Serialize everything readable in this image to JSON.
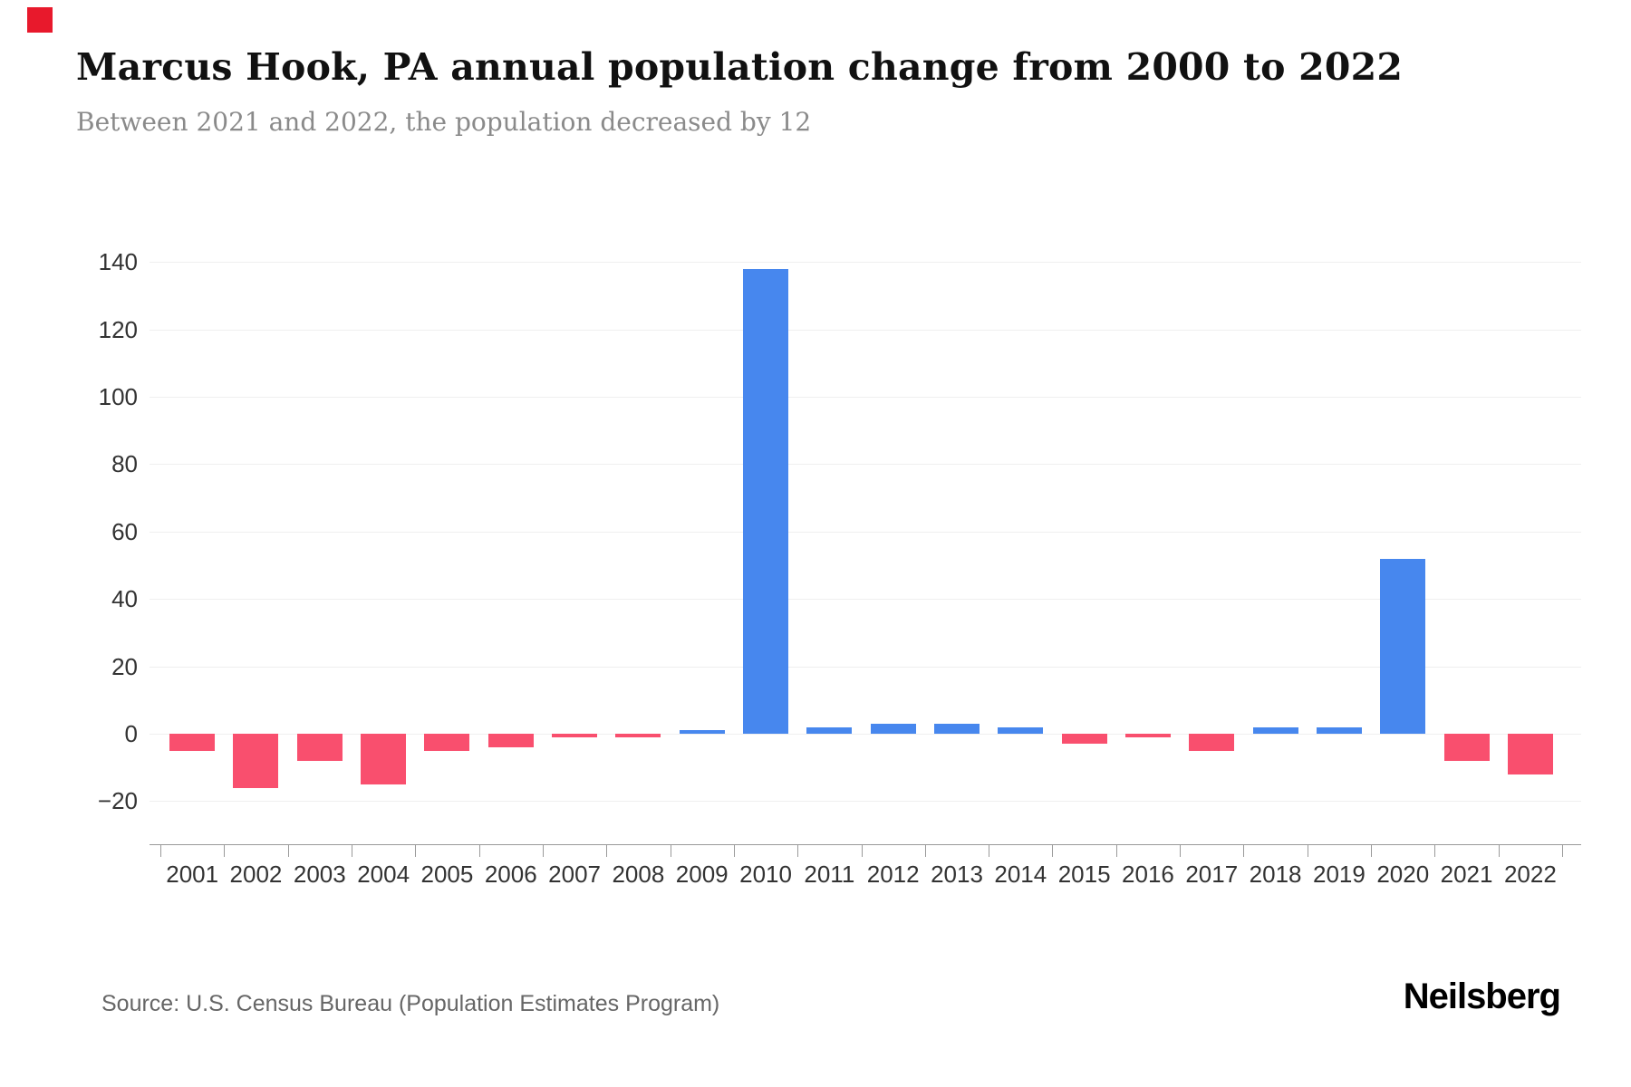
{
  "branding": {
    "logo_text": "Neilsberg",
    "accent_square_color": "#e8192c"
  },
  "header": {
    "title": "Marcus Hook, PA annual population change from 2000 to 2022",
    "subtitle": "Between 2021 and 2022, the population decreased by 12"
  },
  "source": {
    "text": "Source: U.S. Census Bureau (Population Estimates Program)"
  },
  "chart_data": {
    "type": "bar",
    "title": "Marcus Hook, PA annual population change from 2000 to 2022",
    "subtitle": "Between 2021 and 2022, the population decreased by 12",
    "series_name": "Annual population change",
    "categories": [
      "2001",
      "2002",
      "2003",
      "2004",
      "2005",
      "2006",
      "2007",
      "2008",
      "2009",
      "2010",
      "2011",
      "2012",
      "2013",
      "2014",
      "2015",
      "2016",
      "2017",
      "2018",
      "2019",
      "2020",
      "2021",
      "2022"
    ],
    "values": [
      -5,
      -16,
      -8,
      -15,
      -5,
      -4,
      -1,
      -1,
      1,
      138,
      2,
      3,
      3,
      2,
      -3,
      -1,
      -5,
      2,
      2,
      52,
      -8,
      -12
    ],
    "xlabel": "",
    "ylabel": "",
    "ylim": [
      -20,
      140
    ],
    "y_ticks": [
      140,
      120,
      100,
      80,
      60,
      40,
      20,
      0,
      -20
    ],
    "y_tick_labels": [
      "140",
      "120",
      "100",
      "80",
      "60",
      "40",
      "20",
      "0",
      "−20"
    ],
    "grid": true,
    "legend": "none",
    "positive_color": "#4787ee",
    "negative_color": "#f94f6e",
    "gridline_color": "#efefef",
    "axis_color": "#9a9a9a",
    "label_color": "#333333"
  }
}
